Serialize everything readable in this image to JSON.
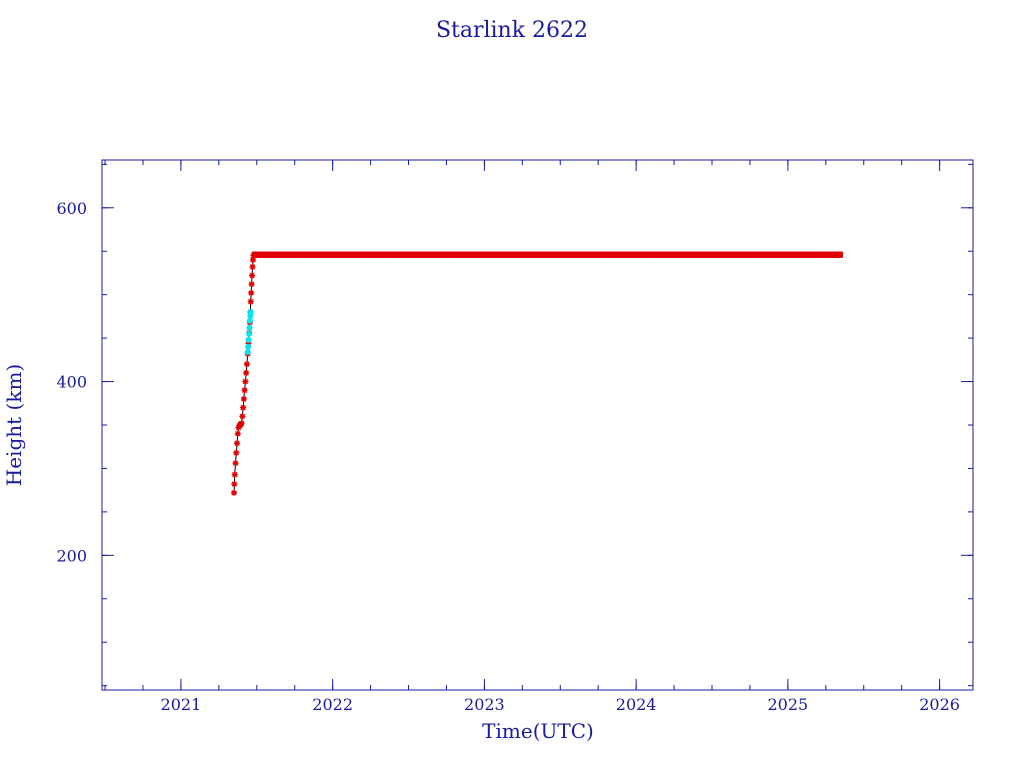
{
  "chart_data": {
    "type": "scatter",
    "title": "Starlink 2622",
    "xlabel": "Time(UTC)",
    "ylabel": "Height (km)",
    "xlim": [
      2020.48,
      2026.22
    ],
    "ylim": [
      45,
      655
    ],
    "x_ticks": [
      2021,
      2022,
      2023,
      2024,
      2025,
      2026
    ],
    "x_tick_labels": [
      "2021",
      "2022",
      "2023",
      "2024",
      "2025",
      "2026"
    ],
    "y_ticks": [
      200,
      400,
      600
    ],
    "y_tick_labels": [
      "200",
      "400",
      "600"
    ],
    "x_minor_step": 0.25,
    "y_minor_step": 50,
    "grid": false,
    "colors": {
      "axes": "#1a1a9c",
      "points": "#e00000",
      "line": "#000000",
      "highlight": "#00e5ee"
    },
    "series": [
      {
        "marker": "star",
        "color": "#e00000",
        "points": [
          [
            2021.35,
            272
          ],
          [
            2021.352,
            282
          ],
          [
            2021.355,
            293
          ],
          [
            2021.36,
            306
          ],
          [
            2021.365,
            318
          ],
          [
            2021.37,
            329
          ],
          [
            2021.375,
            340
          ],
          [
            2021.38,
            347
          ],
          [
            2021.385,
            349
          ],
          [
            2021.39,
            350
          ],
          [
            2021.395,
            351
          ],
          [
            2021.4,
            352
          ],
          [
            2021.405,
            360
          ],
          [
            2021.41,
            370
          ],
          [
            2021.415,
            380
          ],
          [
            2021.42,
            390
          ],
          [
            2021.425,
            400
          ],
          [
            2021.43,
            410
          ],
          [
            2021.435,
            420
          ],
          [
            2021.44,
            432
          ],
          [
            2021.445,
            444
          ],
          [
            2021.45,
            456
          ],
          [
            2021.455,
            468
          ],
          [
            2021.458,
            480
          ],
          [
            2021.46,
            492
          ],
          [
            2021.463,
            502
          ],
          [
            2021.466,
            512
          ],
          [
            2021.469,
            522
          ],
          [
            2021.472,
            532
          ],
          [
            2021.475,
            540
          ],
          [
            2021.478,
            545
          ]
        ],
        "plateau": {
          "x_start": 2021.48,
          "x_end": 2025.35,
          "y": 546,
          "step": 0.005
        }
      },
      {
        "marker": "dot",
        "color": "#00e5ee",
        "points": [
          [
            2021.44,
            434
          ],
          [
            2021.443,
            440
          ],
          [
            2021.446,
            448
          ],
          [
            2021.449,
            455
          ],
          [
            2021.452,
            462
          ],
          [
            2021.455,
            470
          ],
          [
            2021.458,
            476
          ],
          [
            2021.46,
            480
          ]
        ]
      }
    ]
  }
}
